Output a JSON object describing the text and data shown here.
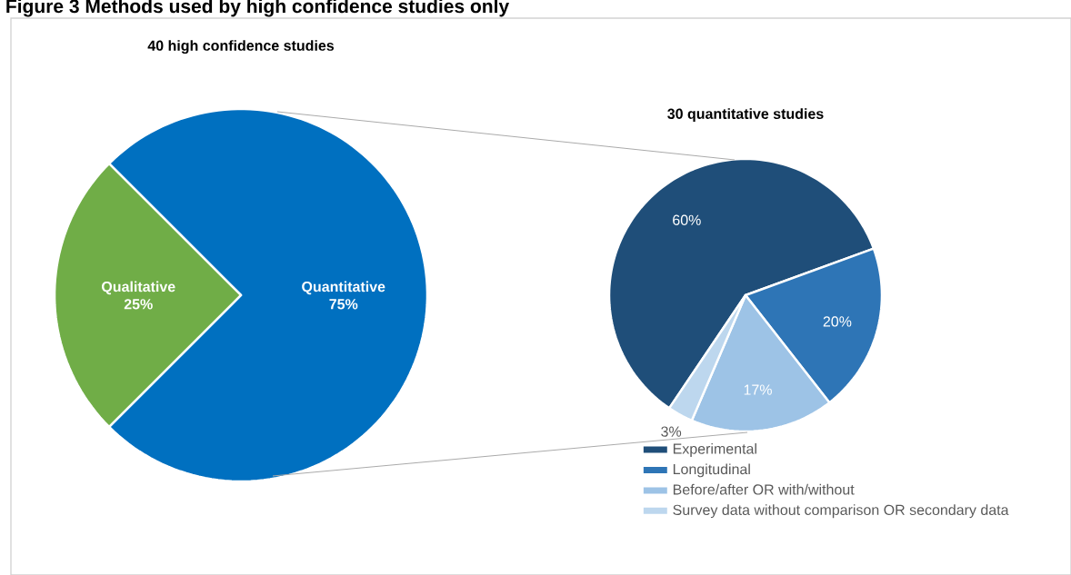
{
  "chart_data": [
    {
      "type": "pie",
      "title": "40 high confidence studies",
      "annotations": [
        "Figure 3 Methods used by high confidence studies only"
      ],
      "categories": [
        "Quantitative",
        "Qualitative"
      ],
      "values": [
        75,
        25
      ],
      "colors": [
        "#0070c0",
        "#70ad47"
      ],
      "value_labels": [
        "75%",
        "25%"
      ],
      "legend": false
    },
    {
      "type": "pie",
      "title": "30 quantitative studies",
      "categories": [
        "Experimental",
        "Longitudinal",
        "Before/after OR with/without",
        "Survey data without comparison OR secondary data"
      ],
      "values": [
        60,
        20,
        17,
        3
      ],
      "colors": [
        "#1f4e79",
        "#2e75b6",
        "#9dc3e6",
        "#bdd7ee"
      ],
      "value_labels": [
        "60%",
        "20%",
        "17%",
        "3%"
      ],
      "legend": "bottom"
    }
  ]
}
